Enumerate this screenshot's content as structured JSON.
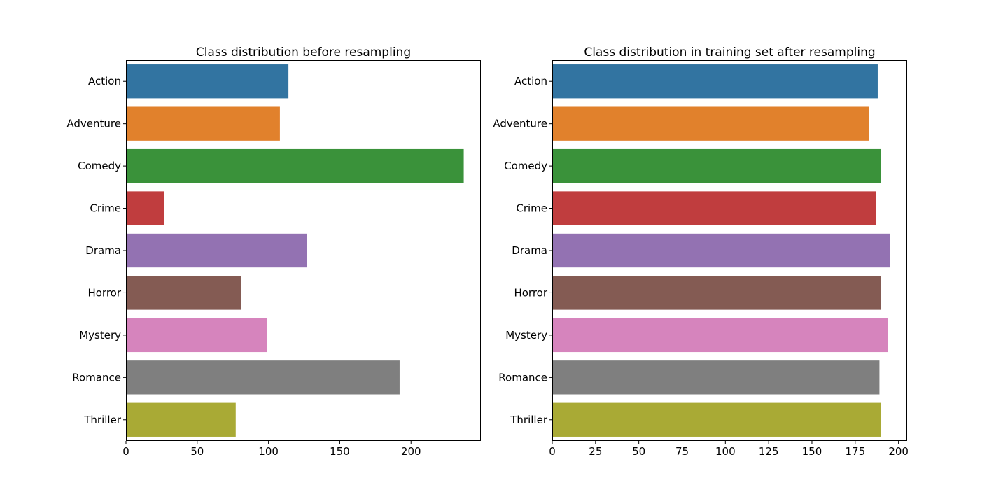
{
  "chart_data": [
    {
      "type": "bar",
      "orientation": "horizontal",
      "title": "Class distribution before resampling",
      "categories": [
        "Action",
        "Adventure",
        "Comedy",
        "Crime",
        "Drama",
        "Horror",
        "Mystery",
        "Romance",
        "Thriller"
      ],
      "values": [
        114,
        108,
        237,
        27,
        127,
        81,
        99,
        192,
        77
      ],
      "colors": [
        "#3274a1",
        "#e1812c",
        "#3a923a",
        "#c03d3e",
        "#9372b2",
        "#845b53",
        "#d684bd",
        "#7f7f7f",
        "#a9aa35"
      ],
      "xlim": [
        0,
        249
      ],
      "xticks": [
        0,
        50,
        100,
        150,
        200
      ],
      "xlabel": "",
      "ylabel": "",
      "grid": false
    },
    {
      "type": "bar",
      "orientation": "horizontal",
      "title": "Class distribution in training set after resampling",
      "categories": [
        "Action",
        "Adventure",
        "Comedy",
        "Crime",
        "Drama",
        "Horror",
        "Mystery",
        "Romance",
        "Thriller"
      ],
      "values": [
        188,
        183,
        190,
        187,
        195,
        190,
        194,
        189,
        190
      ],
      "colors": [
        "#3274a1",
        "#e1812c",
        "#3a923a",
        "#c03d3e",
        "#9372b2",
        "#845b53",
        "#d684bd",
        "#7f7f7f",
        "#a9aa35"
      ],
      "xlim": [
        0,
        205
      ],
      "xticks": [
        0,
        25,
        50,
        75,
        100,
        125,
        150,
        175,
        200
      ],
      "xlabel": "",
      "ylabel": "",
      "grid": false
    }
  ]
}
